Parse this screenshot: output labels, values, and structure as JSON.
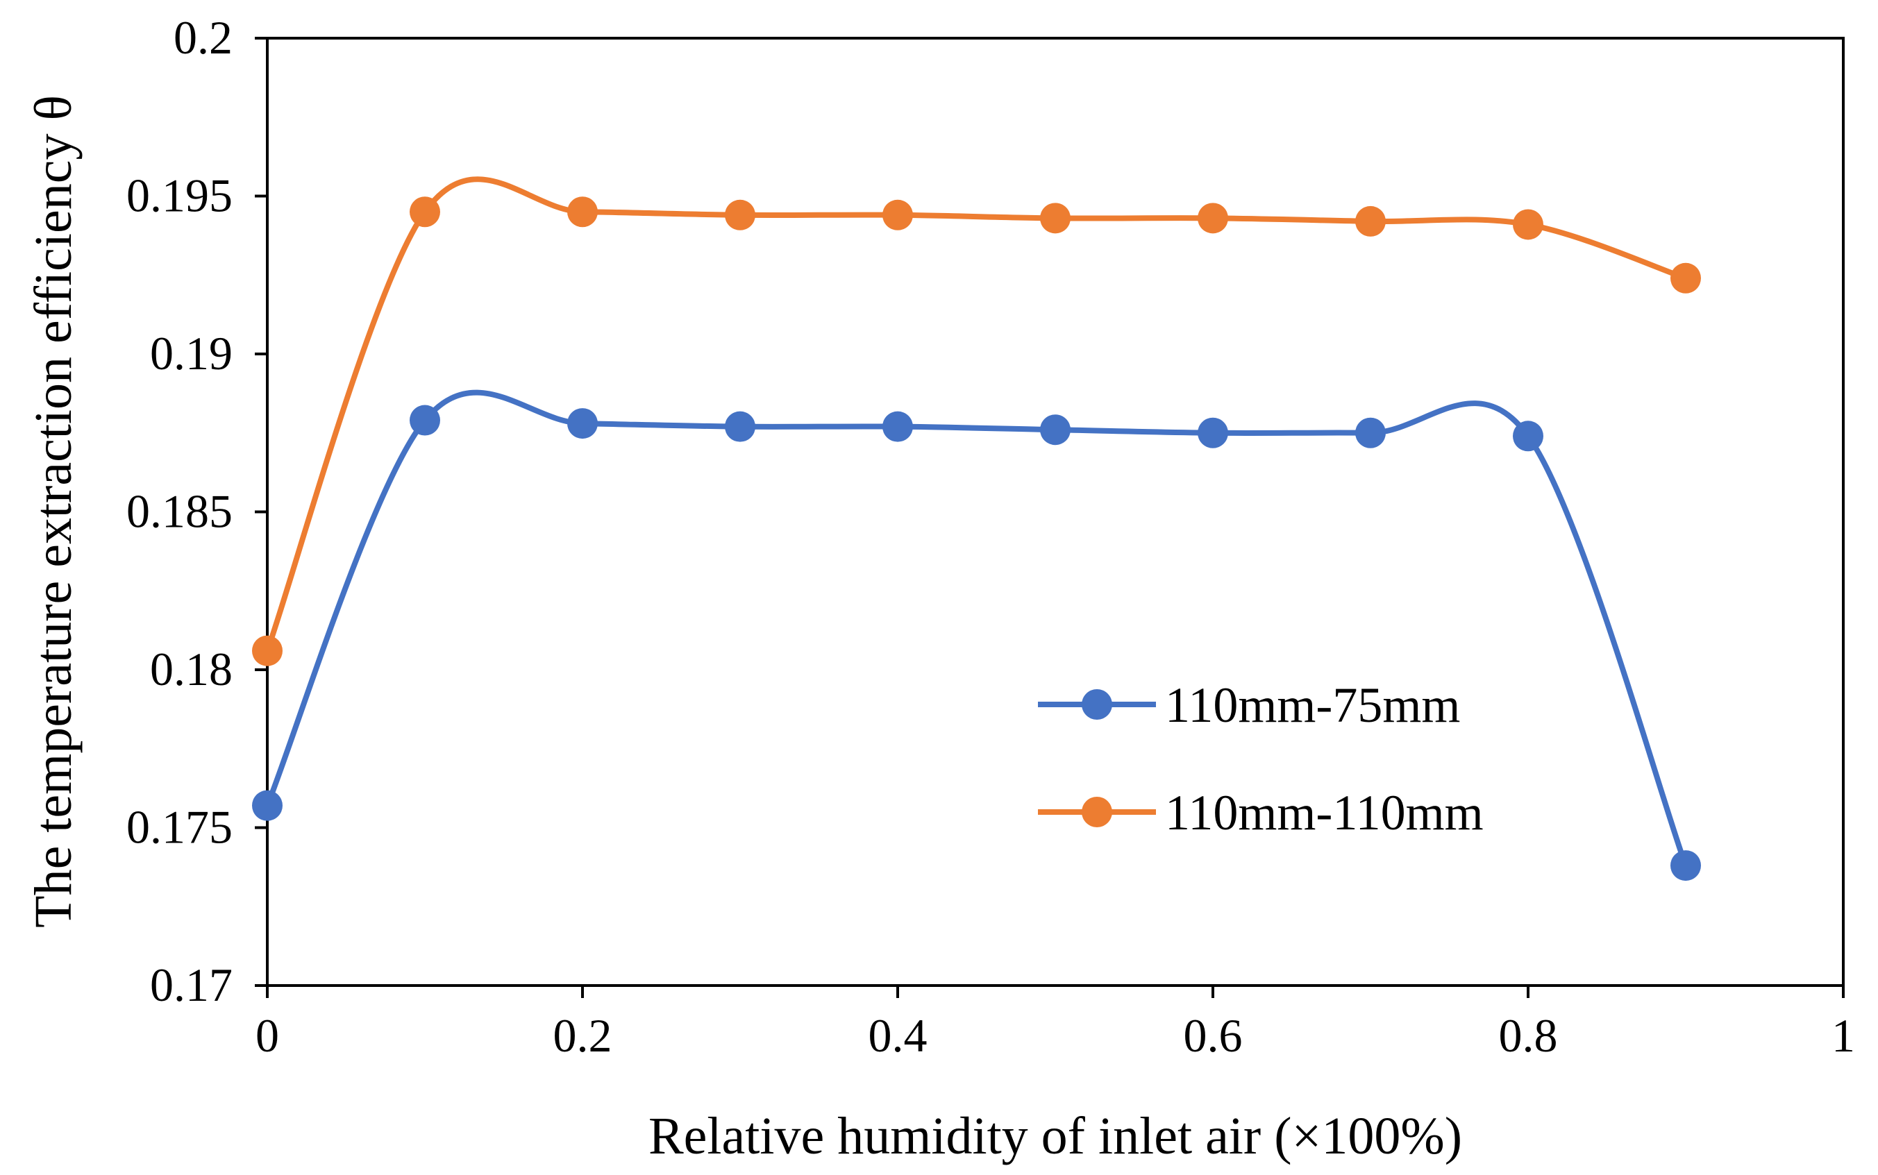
{
  "chart_data": {
    "type": "line",
    "title": "",
    "xlabel": "Relative humidity of inlet air (×100%)",
    "ylabel": "The temperature extraction efficiency θ",
    "xlim": [
      0,
      1
    ],
    "ylim": [
      0.17,
      0.2
    ],
    "xticks": [
      0,
      0.2,
      0.4,
      0.6,
      0.8,
      1
    ],
    "xtick_labels": [
      "0",
      "0.2",
      "0.4",
      "0.6",
      "0.8",
      "1"
    ],
    "yticks": [
      0.17,
      0.175,
      0.18,
      0.185,
      0.19,
      0.195,
      0.2
    ],
    "ytick_labels": [
      "0.17",
      "0.175",
      "0.18",
      "0.185",
      "0.19",
      "0.195",
      "0.2"
    ],
    "grid": false,
    "smooth": true,
    "legend_position": "center-right",
    "x": [
      0,
      0.1,
      0.2,
      0.3,
      0.4,
      0.5,
      0.6,
      0.7,
      0.8,
      0.9
    ],
    "series": [
      {
        "name": "110mm-75mm",
        "color": "#4472C4",
        "values": [
          0.1757,
          0.1879,
          0.1878,
          0.1877,
          0.1877,
          0.1876,
          0.1875,
          0.1875,
          0.1874,
          0.1738
        ]
      },
      {
        "name": "110mm-110mm",
        "color": "#ED7D31",
        "values": [
          0.1806,
          0.1945,
          0.1945,
          0.1944,
          0.1944,
          0.1943,
          0.1943,
          0.1942,
          0.1941,
          0.1924
        ]
      }
    ]
  }
}
